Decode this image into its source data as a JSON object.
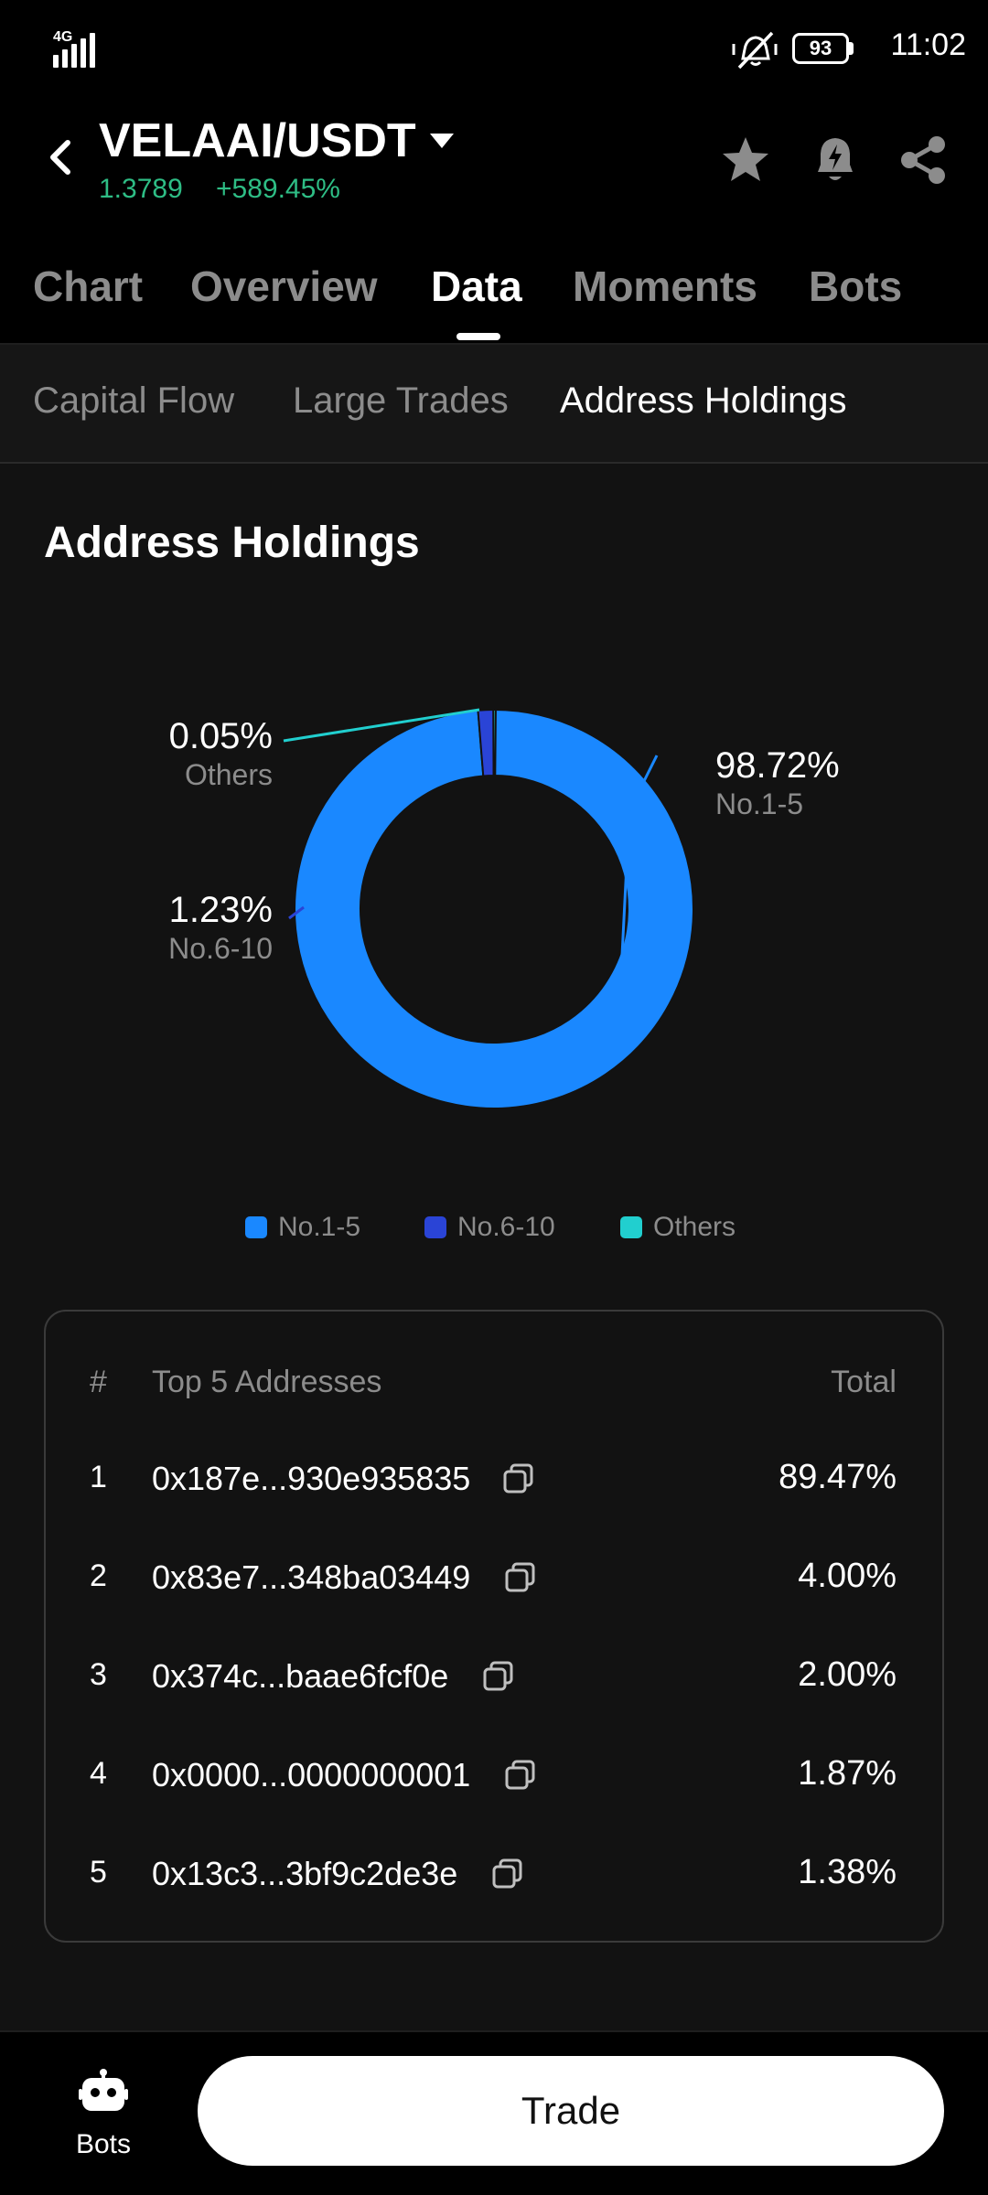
{
  "status_bar": {
    "network": "4G",
    "battery": "93",
    "time": "11:02"
  },
  "header": {
    "pair": "VELAAI/USDT",
    "price": "1.3789",
    "change": "+589.45%",
    "tabs": [
      {
        "label": "Chart",
        "active": false
      },
      {
        "label": "Overview",
        "active": false
      },
      {
        "label": "Data",
        "active": true
      },
      {
        "label": "Moments",
        "active": false
      },
      {
        "label": "Bots",
        "active": false
      }
    ]
  },
  "subtabs": [
    {
      "label": "Capital Flow",
      "active": false
    },
    {
      "label": "Large Trades",
      "active": false
    },
    {
      "label": "Address Holdings",
      "active": true
    }
  ],
  "section_title": "Address Holdings",
  "chart_data": {
    "type": "pie",
    "title": "",
    "categories": [
      "No.1-5",
      "No.6-10",
      "Others"
    ],
    "values": [
      98.72,
      1.23,
      0.05
    ],
    "labels": [
      "98.72%",
      "1.23%",
      "0.05%"
    ],
    "colors": [
      "#1a88ff",
      "#2a44d6",
      "#21cfcf"
    ],
    "donut": true,
    "legend": "bottom"
  },
  "table": {
    "headers": {
      "rank": "#",
      "address": "Top 5 Addresses",
      "total": "Total"
    },
    "rows": [
      {
        "rank": "1",
        "address": "0x187e...930e935835",
        "total": "89.47%"
      },
      {
        "rank": "2",
        "address": "0x83e7...348ba03449",
        "total": "4.00%"
      },
      {
        "rank": "3",
        "address": "0x374c...baae6fcf0e",
        "total": "2.00%"
      },
      {
        "rank": "4",
        "address": "0x0000...0000000001",
        "total": "1.87%"
      },
      {
        "rank": "5",
        "address": "0x13c3...3bf9c2de3e",
        "total": "1.38%"
      }
    ]
  },
  "bottom": {
    "bots_label": "Bots",
    "trade_label": "Trade"
  },
  "icons": {
    "back": "chevron-left-icon",
    "dropdown": "caret-down-icon",
    "favorite": "star-icon",
    "alert": "bell-icon",
    "share": "share-icon",
    "copy": "copy-icon",
    "bots": "robot-icon",
    "mute": "mute-icon"
  },
  "colors": {
    "up": "#2ebd85",
    "background": "#121212"
  }
}
